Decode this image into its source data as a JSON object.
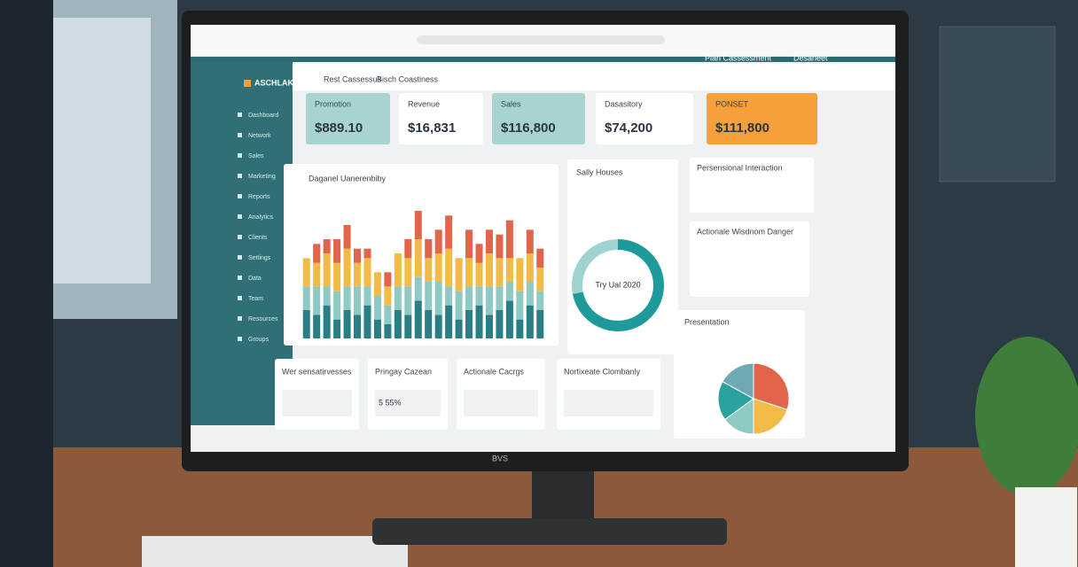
{
  "brand": "ASCHLAKT",
  "top_nav": [
    "Rest Cassessus",
    "Bisch Coastiness"
  ],
  "top_right": [
    "Plan Cassessment",
    "Desaneet"
  ],
  "sidebar": [
    "Dashboard",
    "Network",
    "Sales",
    "Marketing",
    "Reports",
    "Analytics",
    "Clients",
    "Settings",
    "Data",
    "Team",
    "Resources",
    "Groups"
  ],
  "kpis": [
    {
      "label": "Promotion",
      "value": "$889.10"
    },
    {
      "label": "Revenue",
      "value": "$16,831"
    },
    {
      "label": "Sales",
      "value": "$116,800"
    },
    {
      "label": "Dasasitory",
      "value": "$74,200"
    },
    {
      "label": "PONSET",
      "value": "$111,800"
    }
  ],
  "bar_chart": {
    "type": "bar",
    "title": "Daganel Uanerenbiby",
    "series": [
      {
        "color": "#2a7f86",
        "values": [
          30,
          25,
          35,
          20,
          30,
          25,
          35,
          20,
          15,
          30,
          25,
          40,
          30,
          25,
          35,
          20,
          30,
          35,
          25,
          30,
          40,
          20,
          35,
          30
        ]
      },
      {
        "color": "#8fc9c3",
        "values": [
          25,
          30,
          20,
          30,
          25,
          30,
          20,
          25,
          20,
          25,
          30,
          25,
          30,
          35,
          20,
          30,
          25,
          20,
          30,
          25,
          20,
          30,
          25,
          20
        ]
      },
      {
        "color": "#f2bb47",
        "values": [
          30,
          25,
          35,
          30,
          40,
          25,
          30,
          25,
          20,
          35,
          30,
          40,
          25,
          30,
          40,
          35,
          30,
          25,
          35,
          30,
          25,
          35,
          30,
          25
        ]
      },
      {
        "color": "#e0654a",
        "values": [
          0,
          20,
          15,
          25,
          25,
          15,
          10,
          0,
          15,
          0,
          20,
          30,
          20,
          25,
          35,
          0,
          30,
          20,
          25,
          25,
          40,
          0,
          25,
          20
        ]
      }
    ]
  },
  "donut": {
    "type": "donut",
    "title": "Sally Houses",
    "center_label": "Try Ual 2020",
    "values": [
      72,
      28
    ],
    "colors": [
      "#1f9a9a",
      "#9fd3cf"
    ]
  },
  "info_cards": [
    "Persensional Interaction",
    "Actionale Wisdnom Danger"
  ],
  "pie": {
    "type": "pie",
    "title": "Presentation",
    "values": [
      30,
      20,
      15,
      18,
      17
    ],
    "colors": [
      "#e0654a",
      "#f2bb47",
      "#8fc9c3",
      "#2aa3a0",
      "#6fa9b3"
    ]
  },
  "bottom_cards": [
    {
      "title": "Wer sensatirvesses"
    },
    {
      "title": "Pringay Cazean",
      "value": "5 55%"
    },
    {
      "title": "Actionale Cacrgs"
    },
    {
      "title": "Nortixeate Clombanly"
    }
  ],
  "monitor_brand": "BVS"
}
